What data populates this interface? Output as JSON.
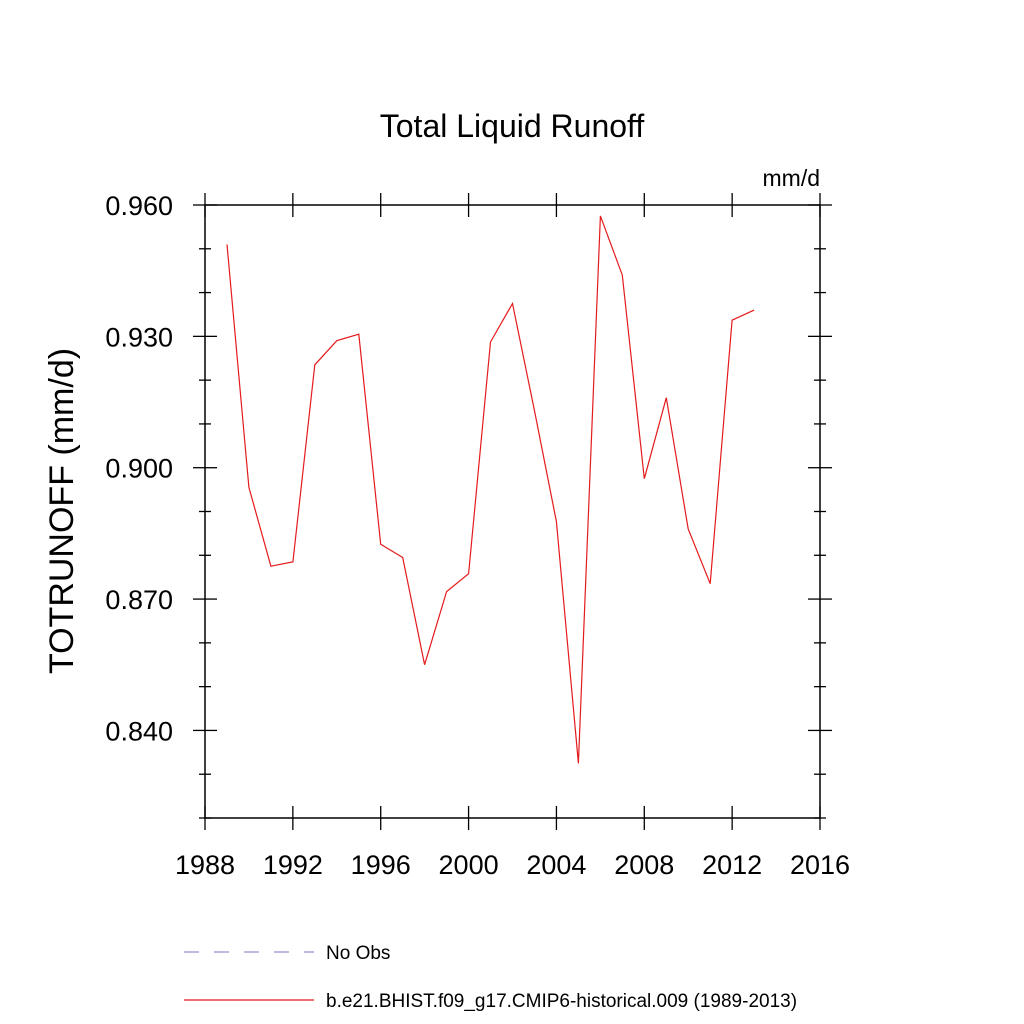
{
  "chart_data": {
    "type": "line",
    "title": "Total Liquid Runoff",
    "units": "mm/d",
    "ylabel": "TOTRUNOFF  (mm/d)",
    "xlabel": "",
    "xlim": [
      1988,
      2016
    ],
    "ylim": [
      0.82,
      0.96
    ],
    "xticks": [
      1988,
      1992,
      1996,
      2000,
      2004,
      2008,
      2012,
      2016
    ],
    "xtick_labels": [
      "1988",
      "1992",
      "1996",
      "2000",
      "2004",
      "2008",
      "2012",
      "2016"
    ],
    "yticks": [
      0.84,
      0.87,
      0.9,
      0.93,
      0.96
    ],
    "ytick_labels": [
      "0.840",
      "0.870",
      "0.900",
      "0.930",
      "0.960"
    ],
    "grid": false,
    "legend_position": "bottom",
    "series": [
      {
        "name": "No Obs",
        "color": "#9a8fcf",
        "dash": "dashed",
        "x": [],
        "y": []
      },
      {
        "name": "b.e21.BHIST.f09_g17.CMIP6-historical.009 (1989-2013)",
        "color": "#e41a1c",
        "dash": "solid",
        "x": [
          1989,
          1990,
          1991,
          1992,
          1993,
          1994,
          1995,
          1996,
          1997,
          1998,
          1999,
          2000,
          2001,
          2002,
          2003,
          2004,
          2005,
          2006,
          2007,
          2008,
          2009,
          2010,
          2011,
          2012,
          2013
        ],
        "y": [
          0.951,
          0.8955,
          0.8775,
          0.8785,
          0.9235,
          0.929,
          0.9305,
          0.8825,
          0.8795,
          0.855,
          0.8717,
          0.8758,
          0.9287,
          0.9375,
          0.913,
          0.8877,
          0.8325,
          0.9575,
          0.944,
          0.8975,
          0.916,
          0.886,
          0.8735,
          0.9337,
          0.936
        ]
      }
    ]
  }
}
